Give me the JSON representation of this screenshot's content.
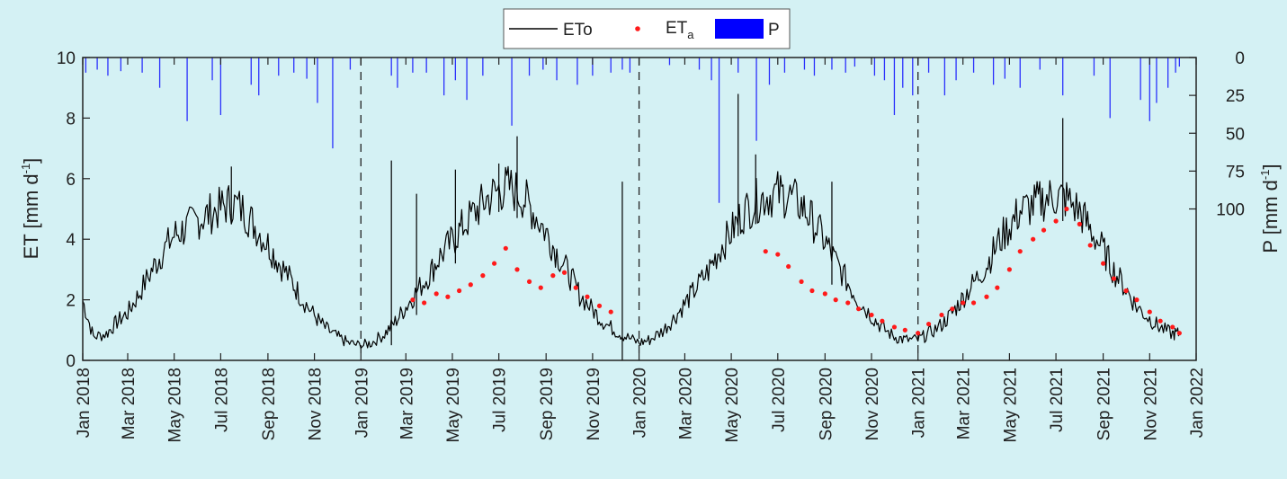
{
  "chart_data": {
    "type": "line",
    "x_axis": {
      "range": [
        "2018-01-01",
        "2022-01-01"
      ],
      "tick_labels": [
        "Jan 2018",
        "Mar 2018",
        "May 2018",
        "Jul 2018",
        "Sep 2018",
        "Nov 2018",
        "Jan 2019",
        "Mar 2019",
        "May 2019",
        "Jul 2019",
        "Sep 2019",
        "Nov 2019",
        "Jan 2020",
        "Mar 2020",
        "May 2020",
        "Jul 2020",
        "Sep 2020",
        "Nov 2020",
        "Jan 2021",
        "Mar 2021",
        "May 2021",
        "Jul 2021",
        "Sep 2021",
        "Nov 2021",
        "Jan 2022"
      ]
    },
    "y_left": {
      "label_main": "ET [mm d",
      "label_sup": "-1",
      "label_end": "]",
      "range": [
        0,
        10
      ],
      "ticks": [
        "0",
        "2",
        "4",
        "6",
        "8",
        "10"
      ]
    },
    "y_right": {
      "label_main": "P [mm d",
      "label_sup": "-1",
      "label_end": "]",
      "range": [
        0,
        200
      ],
      "inverted": true,
      "ticks": [
        "0",
        "25",
        "50",
        "75",
        "100"
      ]
    },
    "legend": {
      "placement": "top-center",
      "entries": [
        {
          "id": "eto",
          "label": "ET0",
          "label_main": "ETo",
          "kind": "line",
          "color": "#000000"
        },
        {
          "id": "eta",
          "label": "ETa",
          "label_main": "ET",
          "label_sub": "a",
          "kind": "marker",
          "color": "#ff1a1a"
        },
        {
          "id": "p",
          "label": "P",
          "label_main": "P",
          "kind": "bar",
          "color": "#0000ff"
        }
      ]
    },
    "year_separators": [
      "2019-01-01",
      "2020-01-01",
      "2021-01-01"
    ],
    "series": [
      {
        "name": "ETo",
        "type": "line",
        "color": "#000000",
        "x": [
          "2018-01-01",
          "2018-01-15",
          "2018-02-01",
          "2018-02-15",
          "2018-03-01",
          "2018-03-15",
          "2018-04-01",
          "2018-04-15",
          "2018-05-01",
          "2018-05-15",
          "2018-06-01",
          "2018-06-15",
          "2018-07-01",
          "2018-07-15",
          "2018-08-01",
          "2018-08-15",
          "2018-09-01",
          "2018-09-15",
          "2018-10-01",
          "2018-10-15",
          "2018-11-01",
          "2018-11-15",
          "2018-12-01",
          "2018-12-15",
          "2019-01-01",
          "2019-01-15",
          "2019-02-01",
          "2019-02-15",
          "2019-03-01",
          "2019-03-15",
          "2019-04-01",
          "2019-04-15",
          "2019-05-01",
          "2019-05-15",
          "2019-06-01",
          "2019-06-15",
          "2019-07-01",
          "2019-07-15",
          "2019-08-01",
          "2019-08-15",
          "2019-09-01",
          "2019-09-15",
          "2019-10-01",
          "2019-10-15",
          "2019-11-01",
          "2019-11-15",
          "2019-12-01",
          "2019-12-15",
          "2020-01-01",
          "2020-01-15",
          "2020-02-01",
          "2020-02-15",
          "2020-03-01",
          "2020-03-15",
          "2020-04-01",
          "2020-04-15",
          "2020-05-01",
          "2020-05-15",
          "2020-06-01",
          "2020-06-15",
          "2020-07-01",
          "2020-07-15",
          "2020-08-01",
          "2020-08-15",
          "2020-09-01",
          "2020-09-15",
          "2020-10-01",
          "2020-10-15",
          "2020-11-01",
          "2020-11-15",
          "2020-12-01",
          "2020-12-15",
          "2021-01-01",
          "2021-01-15",
          "2021-02-01",
          "2021-02-15",
          "2021-03-01",
          "2021-03-15",
          "2021-04-01",
          "2021-04-15",
          "2021-05-01",
          "2021-05-15",
          "2021-06-01",
          "2021-06-15",
          "2021-07-01",
          "2021-07-15",
          "2021-08-01",
          "2021-08-15",
          "2021-09-01",
          "2021-09-15",
          "2021-10-01",
          "2021-10-15",
          "2021-11-01",
          "2021-11-15",
          "2021-12-01",
          "2021-12-10"
        ],
        "y": [
          2.0,
          0.8,
          0.9,
          1.3,
          1.6,
          2.2,
          3.0,
          3.6,
          4.2,
          4.4,
          4.7,
          4.9,
          5.1,
          5.3,
          5.0,
          4.5,
          3.9,
          3.3,
          2.7,
          2.1,
          1.5,
          1.1,
          0.8,
          0.6,
          0.5,
          0.6,
          0.9,
          1.3,
          1.8,
          2.3,
          2.9,
          3.5,
          4.0,
          4.5,
          5.0,
          5.4,
          5.7,
          5.8,
          5.5,
          5.0,
          4.3,
          3.6,
          2.9,
          2.2,
          1.7,
          1.3,
          1.0,
          0.8,
          0.6,
          0.7,
          1.0,
          1.4,
          1.9,
          2.4,
          3.0,
          3.7,
          4.3,
          4.9,
          5.3,
          5.5,
          5.6,
          5.5,
          5.2,
          4.7,
          4.0,
          3.3,
          2.6,
          2.0,
          1.5,
          1.1,
          0.8,
          0.7,
          0.7,
          0.9,
          1.2,
          1.6,
          2.1,
          2.6,
          3.2,
          3.9,
          4.5,
          5.0,
          5.2,
          5.4,
          5.5,
          5.4,
          5.0,
          4.4,
          3.7,
          3.0,
          2.4,
          1.8,
          1.4,
          1.1,
          0.9,
          0.9
        ],
        "spikes": [
          {
            "x": "2019-02-10",
            "y": 6.6
          },
          {
            "x": "2019-03-15",
            "y": 5.5
          },
          {
            "x": "2019-05-05",
            "y": 6.3
          },
          {
            "x": "2019-07-01",
            "y": 6.5
          },
          {
            "x": "2019-07-25",
            "y": 7.4
          },
          {
            "x": "2019-12-10",
            "y": 5.9
          },
          {
            "x": "2020-05-10",
            "y": 8.8
          },
          {
            "x": "2020-06-02",
            "y": 6.8
          },
          {
            "x": "2020-09-10",
            "y": 5.9
          },
          {
            "x": "2021-07-10",
            "y": 8.0
          },
          {
            "x": "2018-07-15",
            "y": 6.4
          }
        ]
      },
      {
        "name": "ETa",
        "type": "scatter",
        "color": "#ff1a1a",
        "x": [
          "2019-03-10",
          "2019-03-25",
          "2019-04-10",
          "2019-04-25",
          "2019-05-10",
          "2019-05-25",
          "2019-06-10",
          "2019-06-25",
          "2019-07-10",
          "2019-07-25",
          "2019-08-10",
          "2019-08-25",
          "2019-09-10",
          "2019-09-25",
          "2019-10-10",
          "2019-10-25",
          "2019-11-10",
          "2019-11-25",
          "2020-06-15",
          "2020-07-01",
          "2020-07-15",
          "2020-08-01",
          "2020-08-15",
          "2020-09-01",
          "2020-09-15",
          "2020-10-01",
          "2020-10-15",
          "2020-11-01",
          "2020-11-15",
          "2020-12-01",
          "2020-12-15",
          "2021-01-01",
          "2021-01-15",
          "2021-02-01",
          "2021-02-15",
          "2021-03-01",
          "2021-03-15",
          "2021-04-01",
          "2021-04-15",
          "2021-05-01",
          "2021-05-15",
          "2021-06-01",
          "2021-06-15",
          "2021-07-01",
          "2021-07-15",
          "2021-08-01",
          "2021-08-15",
          "2021-09-01",
          "2021-09-15",
          "2021-10-01",
          "2021-10-15",
          "2021-11-01",
          "2021-11-15",
          "2021-12-01",
          "2021-12-10"
        ],
        "y": [
          2.0,
          1.9,
          2.2,
          2.1,
          2.3,
          2.5,
          2.8,
          3.2,
          3.7,
          3.0,
          2.6,
          2.4,
          2.8,
          2.9,
          2.4,
          2.1,
          1.8,
          1.6,
          3.6,
          3.5,
          3.1,
          2.6,
          2.3,
          2.2,
          2.0,
          1.9,
          1.7,
          1.5,
          1.3,
          1.1,
          1.0,
          0.9,
          1.2,
          1.5,
          1.7,
          1.9,
          1.9,
          2.1,
          2.4,
          3.0,
          3.6,
          4.0,
          4.3,
          4.6,
          5.0,
          4.5,
          3.8,
          3.2,
          2.7,
          2.3,
          2.0,
          1.6,
          1.3,
          1.1,
          0.9
        ]
      },
      {
        "name": "P",
        "type": "bar",
        "color": "#0000ff",
        "axis": "right",
        "x": [
          "2018-01-05",
          "2018-01-20",
          "2018-02-03",
          "2018-02-20",
          "2018-03-20",
          "2018-04-12",
          "2018-05-18",
          "2018-06-20",
          "2018-07-01",
          "2018-08-10",
          "2018-08-20",
          "2018-09-15",
          "2018-10-05",
          "2018-10-22",
          "2018-11-05",
          "2018-11-25",
          "2018-12-18",
          "2019-02-10",
          "2019-02-18",
          "2019-03-10",
          "2019-03-28",
          "2019-04-20",
          "2019-05-05",
          "2019-05-20",
          "2019-06-10",
          "2019-07-18",
          "2019-08-10",
          "2019-08-28",
          "2019-09-15",
          "2019-10-12",
          "2019-11-01",
          "2019-11-25",
          "2019-12-10",
          "2019-12-20",
          "2020-02-10",
          "2020-03-20",
          "2020-04-05",
          "2020-04-15",
          "2020-05-10",
          "2020-06-03",
          "2020-06-20",
          "2020-07-10",
          "2020-08-05",
          "2020-08-18",
          "2020-09-10",
          "2020-09-28",
          "2020-10-10",
          "2020-11-05",
          "2020-11-18",
          "2020-12-01",
          "2020-12-12",
          "2020-12-25",
          "2021-01-15",
          "2021-02-05",
          "2021-02-20",
          "2021-03-15",
          "2021-04-10",
          "2021-04-25",
          "2021-05-15",
          "2021-06-10",
          "2021-07-10",
          "2021-08-20",
          "2021-09-10",
          "2021-10-20",
          "2021-11-01",
          "2021-11-10",
          "2021-11-25",
          "2021-12-05",
          "2021-12-10"
        ],
        "values": [
          10,
          8,
          12,
          9,
          10,
          20,
          42,
          15,
          38,
          18,
          25,
          12,
          10,
          14,
          30,
          60,
          8,
          12,
          20,
          10,
          10,
          25,
          15,
          28,
          12,
          45,
          12,
          8,
          15,
          18,
          12,
          10,
          8,
          10,
          5,
          8,
          15,
          96,
          10,
          55,
          18,
          10,
          8,
          12,
          8,
          10,
          6,
          12,
          15,
          38,
          20,
          25,
          10,
          25,
          15,
          10,
          18,
          14,
          20,
          8,
          25,
          12,
          40,
          28,
          42,
          30,
          20,
          10,
          6
        ]
      }
    ]
  }
}
